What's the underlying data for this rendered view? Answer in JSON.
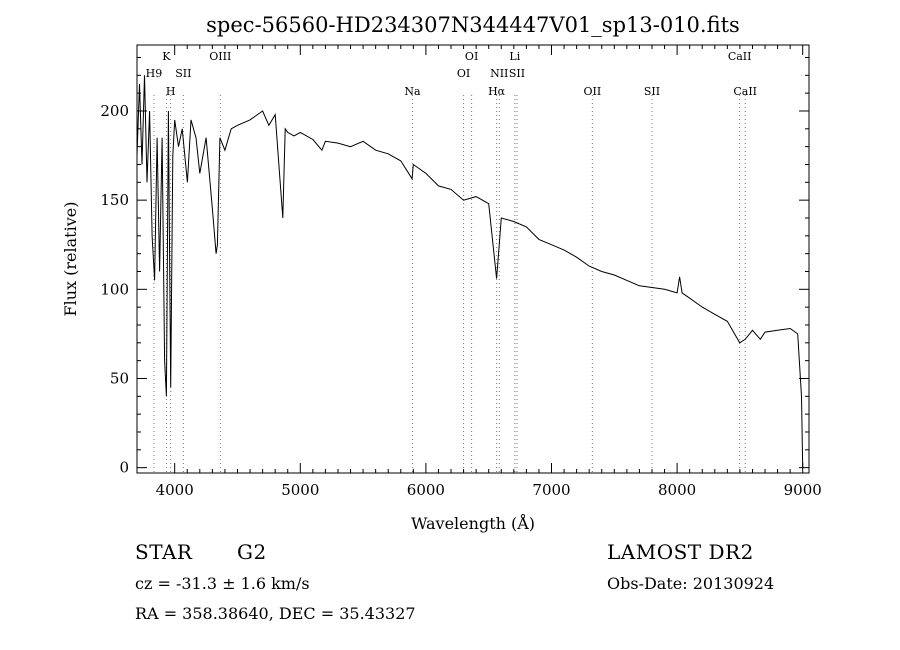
{
  "chart_data": {
    "type": "line",
    "title": "spec-56560-HD234307N344447V01_sp13-010.fits",
    "xlabel": "Wavelength (Å)",
    "ylabel": "Flux (relative)",
    "xlim": [
      3700,
      9050
    ],
    "ylim": [
      -3,
      237
    ],
    "xticks": [
      4000,
      5000,
      6000,
      7000,
      8000,
      9000
    ],
    "yticks": [
      0,
      50,
      100,
      150,
      200
    ],
    "grid": false,
    "series": [
      {
        "name": "flux",
        "x": [
          3700,
          3720,
          3740,
          3760,
          3780,
          3800,
          3820,
          3840,
          3860,
          3880,
          3900,
          3920,
          3934,
          3950,
          3968,
          3985,
          4000,
          4030,
          4060,
          4101,
          4130,
          4170,
          4200,
          4250,
          4300,
          4330,
          4340,
          4360,
          4400,
          4450,
          4500,
          4600,
          4700,
          4750,
          4800,
          4861,
          4880,
          4900,
          4950,
          5000,
          5100,
          5172,
          5200,
          5300,
          5400,
          5500,
          5600,
          5700,
          5800,
          5890,
          5900,
          6000,
          6100,
          6200,
          6300,
          6400,
          6500,
          6563,
          6600,
          6700,
          6800,
          6900,
          7000,
          7100,
          7200,
          7300,
          7400,
          7500,
          7600,
          7700,
          7800,
          7900,
          8000,
          8020,
          8040,
          8100,
          8200,
          8300,
          8400,
          8498,
          8542,
          8600,
          8662,
          8700,
          8800,
          8900,
          8960,
          8990,
          9000
        ],
        "y": [
          175,
          215,
          170,
          220,
          160,
          200,
          130,
          105,
          185,
          110,
          185,
          60,
          40,
          200,
          45,
          175,
          195,
          180,
          190,
          160,
          195,
          185,
          165,
          185,
          145,
          120,
          125,
          185,
          178,
          190,
          192,
          195,
          200,
          192,
          198,
          140,
          190,
          188,
          186,
          188,
          184,
          178,
          183,
          182,
          180,
          183,
          178,
          176,
          172,
          162,
          170,
          165,
          158,
          156,
          150,
          152,
          148,
          106,
          140,
          138,
          135,
          128,
          125,
          122,
          118,
          113,
          110,
          108,
          105,
          102,
          101,
          100,
          98,
          107,
          98,
          95,
          90,
          86,
          82,
          70,
          72,
          77,
          72,
          76,
          77,
          78,
          75,
          40,
          0
        ]
      }
    ],
    "lines": [
      {
        "label": "H9",
        "x": 3835,
        "row": 1
      },
      {
        "label": "K",
        "x": 3934,
        "row": 0
      },
      {
        "label": "H",
        "x": 3968,
        "row": 2
      },
      {
        "label": "SII",
        "x": 4069,
        "row": 1
      },
      {
        "label": "OIII",
        "x": 4363,
        "row": 0
      },
      {
        "label": "Na",
        "x": 5893,
        "row": 2
      },
      {
        "label": "OI",
        "x": 6300,
        "row": 1
      },
      {
        "label": "OI",
        "x": 6364,
        "row": 0
      },
      {
        "label": "Hα",
        "x": 6563,
        "row": 2
      },
      {
        "label": "NII",
        "x": 6584,
        "row": 1
      },
      {
        "label": "Li",
        "x": 6708,
        "row": 0
      },
      {
        "label": "SII",
        "x": 6725,
        "row": 1
      },
      {
        "label": "OII",
        "x": 7325,
        "row": 2
      },
      {
        "label": "SII",
        "x": 7800,
        "row": 2
      },
      {
        "label": "CaII",
        "x": 8498,
        "row": 0
      },
      {
        "label": "CaII",
        "x": 8542,
        "row": 2
      }
    ]
  },
  "info": {
    "object_class": "STAR",
    "subclass": "G2",
    "survey": "LAMOST DR2",
    "redshift": "cz = -31.3 ± 1.6 km/s",
    "obs_date": "Obs-Date: 20130924",
    "coords": "RA = 358.38640, DEC =  35.43327"
  }
}
